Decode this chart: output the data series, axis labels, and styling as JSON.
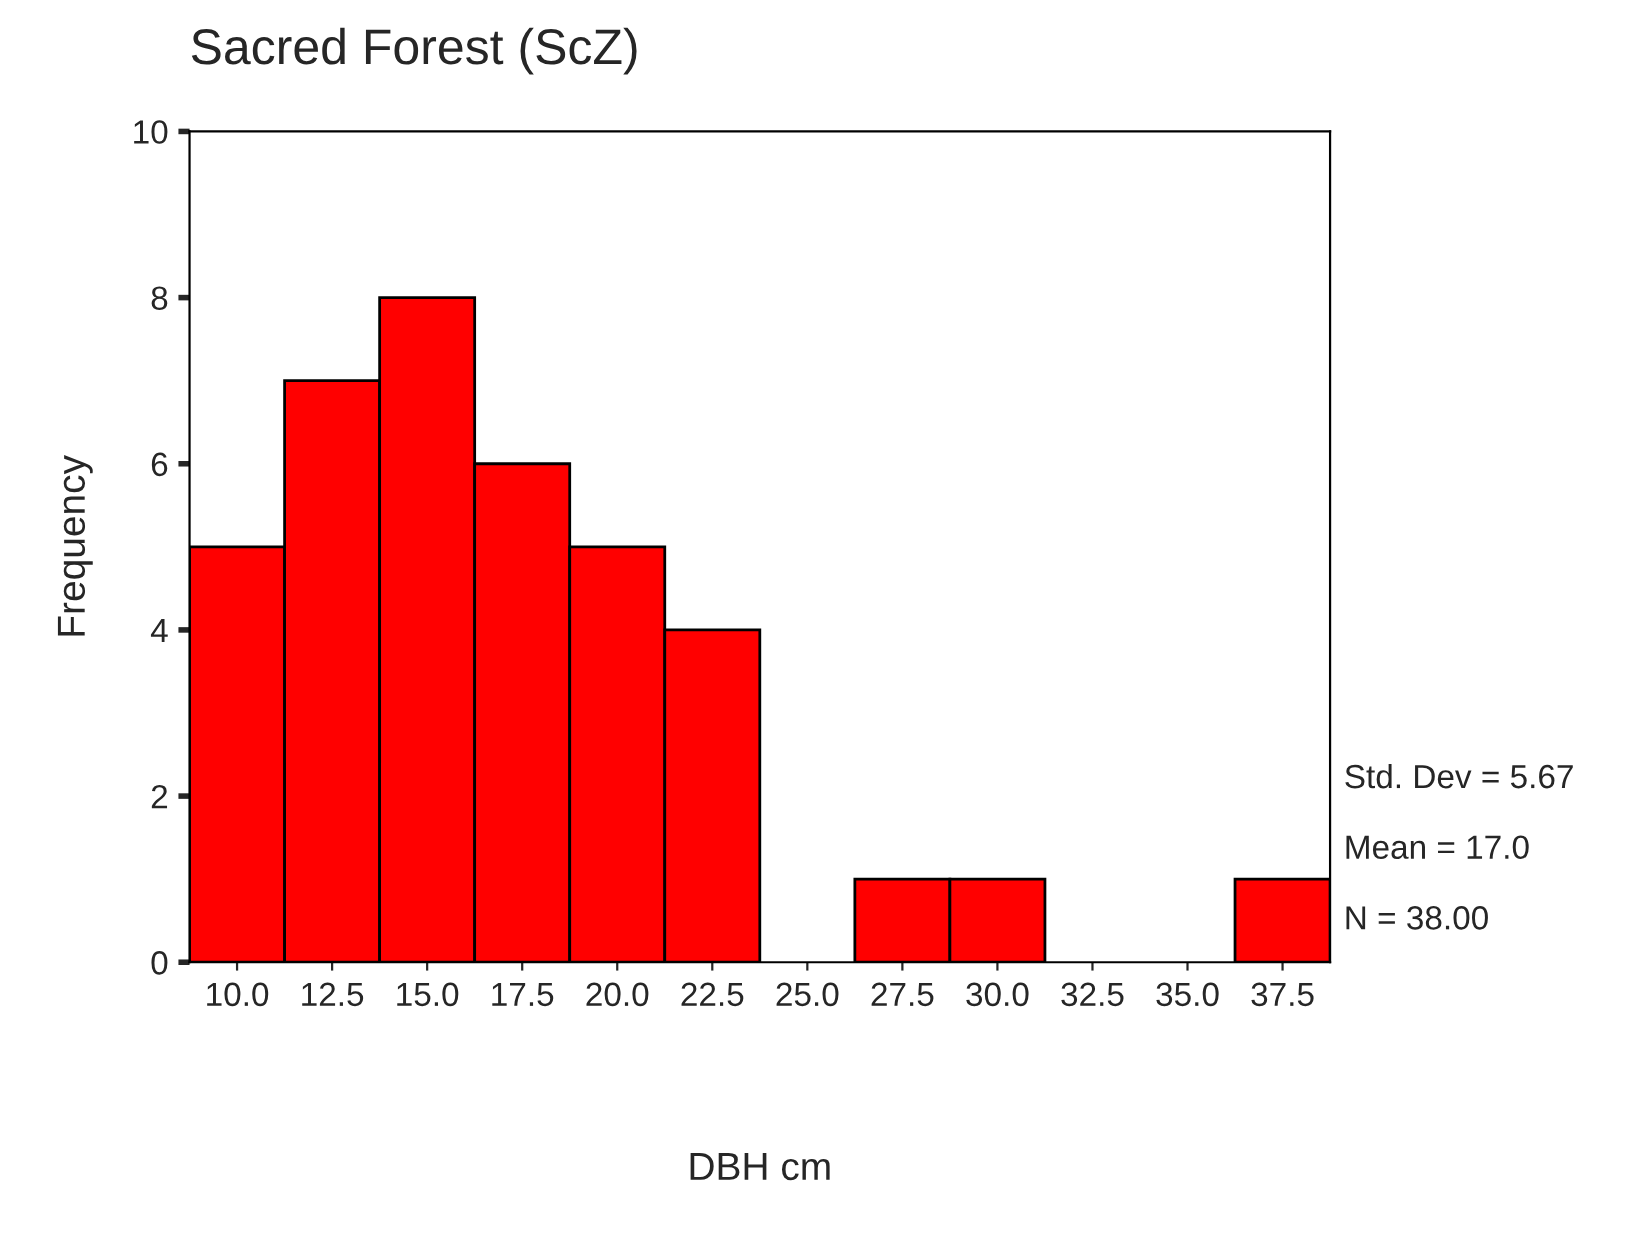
{
  "chart_data": {
    "type": "histogram",
    "title": "Sacred Forest (ScZ)",
    "xlabel": "DBH cm",
    "ylabel": "Frequency",
    "bins": [
      8.75,
      11.25,
      13.75,
      16.25,
      18.75,
      21.25,
      23.75,
      26.25,
      28.75,
      31.25,
      33.75,
      36.25,
      38.75
    ],
    "values": [
      5,
      7,
      8,
      6,
      5,
      4,
      0,
      1,
      1,
      0,
      0,
      1
    ],
    "color": "#ff0000",
    "xlim": [
      8.75,
      38.75
    ],
    "xticks": [
      {
        "value": 10,
        "label": "10.0"
      },
      {
        "value": 12.5,
        "label": "12.5"
      },
      {
        "value": 15,
        "label": "15.0"
      },
      {
        "value": 17.5,
        "label": "17.5"
      },
      {
        "value": 20,
        "label": "20.0"
      },
      {
        "value": 22.5,
        "label": "22.5"
      },
      {
        "value": 25,
        "label": "25.0"
      },
      {
        "value": 27.5,
        "label": "27.5"
      },
      {
        "value": 30,
        "label": "30.0"
      },
      {
        "value": 32.5,
        "label": "32.5"
      },
      {
        "value": 35,
        "label": "35.0"
      },
      {
        "value": 37.5,
        "label": "37.5"
      }
    ],
    "ylim": [
      0,
      10
    ],
    "yticks": [
      0,
      2,
      4,
      6,
      8,
      10
    ],
    "grid": false,
    "annotations": [
      "Std. Dev = 5.67",
      "Mean = 17.0",
      "N = 38.00"
    ]
  }
}
